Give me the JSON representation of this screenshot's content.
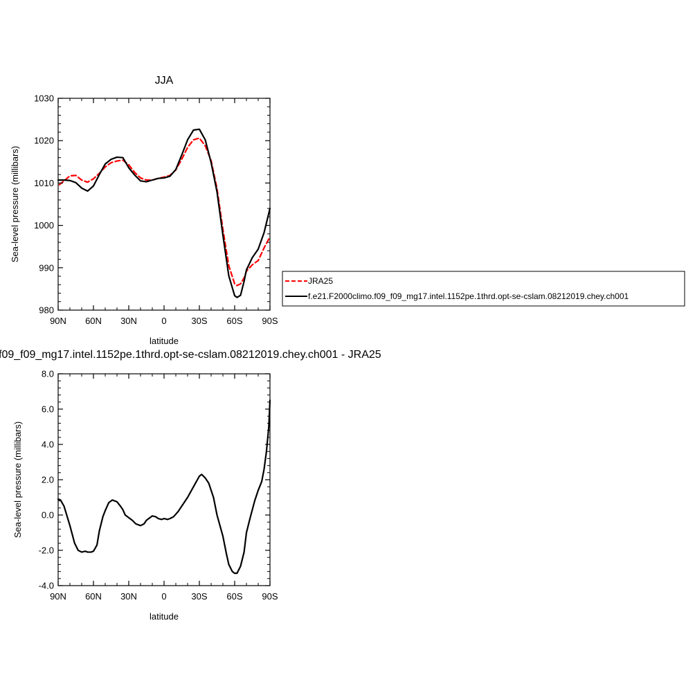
{
  "chart_data": [
    {
      "type": "line",
      "title": "JJA",
      "xlabel": "latitude",
      "ylabel": "Sea-level pressure (millibars)",
      "xlim": [
        90,
        -90
      ],
      "ylim": [
        980,
        1030
      ],
      "x_ticks": [
        90,
        60,
        30,
        0,
        -30,
        -60,
        -90
      ],
      "x_tick_labels": [
        "90N",
        "60N",
        "30N",
        "0",
        "30S",
        "60S",
        "90S"
      ],
      "y_ticks": [
        980,
        990,
        1000,
        1010,
        1020,
        1030
      ],
      "y_tick_labels": [
        "980",
        "990",
        "1000",
        "1010",
        "1020",
        "1030"
      ],
      "legend_position": "right",
      "series": [
        {
          "name": "JRA25",
          "color": "#ff0000",
          "dash": "dashed",
          "x": [
            89,
            85,
            80,
            75,
            70,
            65,
            60,
            55,
            50,
            45,
            40,
            35,
            30,
            25,
            20,
            15,
            10,
            5,
            0,
            -5,
            -10,
            -15,
            -20,
            -25,
            -30,
            -35,
            -40,
            -45,
            -50,
            -55,
            -60,
            -62,
            -65,
            -68,
            -70,
            -75,
            -80,
            -85,
            -90
          ],
          "y": [
            1009.6,
            1010.5,
            1011.7,
            1011.8,
            1010.7,
            1010.2,
            1011.0,
            1012.3,
            1013.8,
            1014.8,
            1015.2,
            1015.4,
            1014.3,
            1012.5,
            1011.2,
            1010.7,
            1010.7,
            1011.1,
            1011.4,
            1011.8,
            1013.1,
            1015.6,
            1018.4,
            1020.2,
            1020.6,
            1018.8,
            1015.3,
            1008.7,
            999.1,
            990.5,
            986.2,
            985.8,
            986.2,
            987.6,
            989.2,
            990.7,
            991.7,
            994.7,
            997.3
          ]
        },
        {
          "name": "f.e21.F2000climo.f09_f09_mg17.intel.1152pe.1thrd.opt-se-cslam.08212019.chey.ch001",
          "color": "#000000",
          "dash": "solid",
          "x": [
            90,
            85,
            80,
            75,
            70,
            65,
            60,
            55,
            50,
            45,
            40,
            35,
            30,
            25,
            20,
            15,
            10,
            5,
            0,
            -5,
            -10,
            -15,
            -20,
            -25,
            -30,
            -35,
            -40,
            -45,
            -50,
            -55,
            -60,
            -62,
            -65,
            -68,
            -70,
            -75,
            -80,
            -85,
            -90
          ],
          "y": [
            1010.7,
            1010.7,
            1010.6,
            1010.1,
            1008.8,
            1008.1,
            1009.3,
            1012.0,
            1014.5,
            1015.6,
            1016.1,
            1016.0,
            1013.6,
            1011.9,
            1010.5,
            1010.3,
            1010.7,
            1011.1,
            1011.2,
            1011.6,
            1013.2,
            1016.6,
            1020.2,
            1022.5,
            1022.7,
            1020.2,
            1014.8,
            1007.9,
            997.7,
            988.1,
            983.4,
            983.0,
            983.5,
            986.8,
            989.5,
            992.4,
            994.4,
            998.3,
            1004.0
          ]
        }
      ]
    },
    {
      "type": "line",
      "title": "f09_f09_mg17.intel.1152pe.1thrd.opt-se-cslam.08212019.chey.ch001 - JRA25",
      "xlabel": "latitude",
      "ylabel": "Sea-level pressure (millibars)",
      "xlim": [
        90,
        -90
      ],
      "ylim": [
        -4,
        8
      ],
      "x_ticks": [
        90,
        60,
        30,
        0,
        -30,
        -60,
        -90
      ],
      "x_tick_labels": [
        "90N",
        "60N",
        "30N",
        "0",
        "30S",
        "60S",
        "90S"
      ],
      "y_ticks": [
        -4,
        -2,
        0,
        2,
        4,
        6,
        8
      ],
      "y_tick_labels": [
        "-4.0",
        "-2.0",
        "0.0",
        "2.0",
        "4.0",
        "6.0",
        "8.0"
      ],
      "series": [
        {
          "color": "#000000",
          "dash": "solid",
          "x": [
            90,
            88,
            85,
            80,
            76,
            73,
            70,
            67,
            65,
            62,
            60,
            57,
            55,
            52,
            50,
            47,
            44,
            40,
            37,
            35,
            33,
            30,
            27,
            24,
            20,
            17,
            15,
            12,
            10,
            7,
            5,
            2,
            0,
            -3,
            -5,
            -8,
            -12,
            -15,
            -20,
            -25,
            -30,
            -32,
            -35,
            -38,
            -42,
            -45,
            -50,
            -53,
            -55,
            -58,
            -60,
            -62,
            -65,
            -68,
            -70,
            -73,
            -77,
            -80,
            -83,
            -85,
            -87,
            -89,
            -90
          ],
          "y": [
            0.9,
            0.85,
            0.5,
            -0.6,
            -1.6,
            -2.0,
            -2.1,
            -2.05,
            -2.1,
            -2.1,
            -2.05,
            -1.7,
            -0.9,
            -0.1,
            0.25,
            0.7,
            0.85,
            0.75,
            0.5,
            0.3,
            0.0,
            -0.15,
            -0.3,
            -0.5,
            -0.6,
            -0.5,
            -0.3,
            -0.15,
            -0.05,
            -0.1,
            -0.2,
            -0.25,
            -0.2,
            -0.25,
            -0.2,
            -0.1,
            0.2,
            0.5,
            1.0,
            1.6,
            2.2,
            2.3,
            2.1,
            1.8,
            1.0,
            0.0,
            -1.2,
            -2.2,
            -2.8,
            -3.2,
            -3.3,
            -3.3,
            -2.9,
            -2.1,
            -1.0,
            -0.2,
            0.8,
            1.4,
            1.9,
            2.6,
            3.6,
            5.0,
            6.5
          ]
        }
      ]
    }
  ]
}
